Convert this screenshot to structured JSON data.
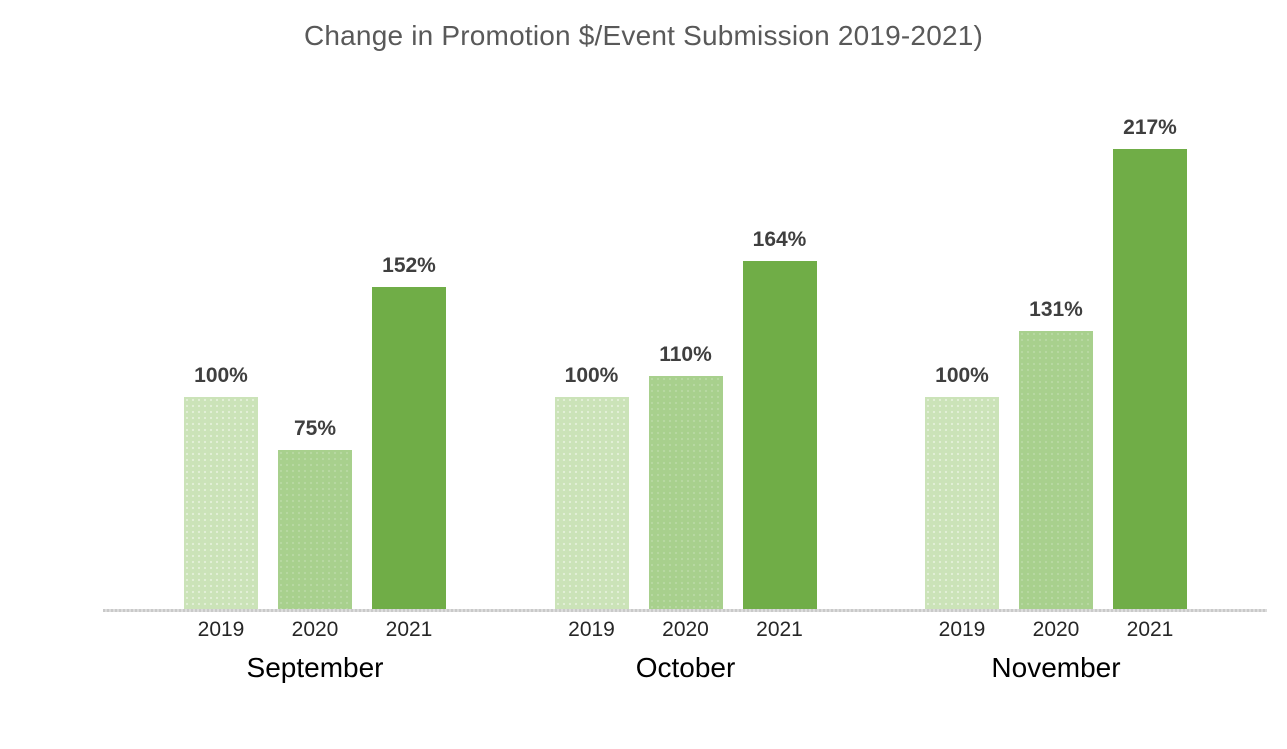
{
  "chart_data": {
    "type": "bar",
    "title": "Change in Promotion $/Event Submission 2019-2021)",
    "categories": [
      "September",
      "October",
      "November"
    ],
    "series": [
      {
        "name": "2019",
        "values": [
          100,
          100,
          100
        ],
        "labels": [
          "100%",
          "100%",
          "100%"
        ],
        "color": "#cbe3b8"
      },
      {
        "name": "2020",
        "values": [
          75,
          110,
          131
        ],
        "labels": [
          "75%",
          "110%",
          "131%"
        ],
        "color": "#a8d08d"
      },
      {
        "name": "2021",
        "values": [
          152,
          164,
          217
        ],
        "labels": [
          "152%",
          "164%",
          "217%"
        ],
        "color": "#70ad47"
      }
    ],
    "xlabel": "",
    "ylabel": "",
    "value_suffix": "%",
    "data_labels": "outside-end",
    "gridlines": false,
    "y_axis_visible": false,
    "legend": "none",
    "axis_line_color": "#d3d3d3",
    "title_color": "#595959",
    "data_label_color": "#3f3f3f",
    "tick_label_color": "#262626",
    "category_label_color": "#000000"
  }
}
